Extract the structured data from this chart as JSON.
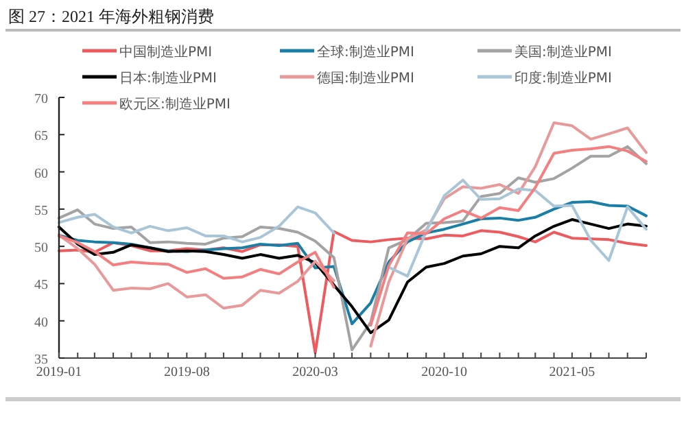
{
  "chart_data": {
    "type": "line",
    "title": "图 27：2021 年海外粗钢消费",
    "legend": "top",
    "x": [
      "2019-01",
      "2019-02",
      "2019-03",
      "2019-04",
      "2019-05",
      "2019-06",
      "2019-07",
      "2019-08",
      "2019-09",
      "2019-10",
      "2019-11",
      "2019-12",
      "2020-01",
      "2020-02",
      "2020-03",
      "2020-04",
      "2020-05",
      "2020-06",
      "2020-07",
      "2020-08",
      "2020-09",
      "2020-10",
      "2020-11",
      "2020-12",
      "2021-01",
      "2021-02",
      "2021-03",
      "2021-04",
      "2021-05",
      "2021-06",
      "2021-07",
      "2021-08",
      "2021-09"
    ],
    "xlim": [
      "2019-01",
      "2021-09"
    ],
    "xticks": [
      "2019-01",
      {
        "value": "2019-02",
        "label": null
      },
      {
        "value": "2019-03",
        "label": null
      },
      {
        "value": "2019-04",
        "label": null
      },
      {
        "value": "2019-05",
        "label": null
      },
      {
        "value": "2019-06",
        "label": null
      },
      {
        "value": "2019-07",
        "label": null
      },
      "2019-08",
      {
        "value": "2019-09",
        "label": null
      },
      {
        "value": "2019-10",
        "label": null
      },
      {
        "value": "2019-11",
        "label": null
      },
      {
        "value": "2019-12",
        "label": null
      },
      {
        "value": "2020-01",
        "label": null
      },
      {
        "value": "2020-02",
        "label": null
      },
      "2020-03",
      {
        "value": "2020-04",
        "label": null
      },
      {
        "value": "2020-05",
        "label": null
      },
      {
        "value": "2020-06",
        "label": null
      },
      {
        "value": "2020-07",
        "label": null
      },
      {
        "value": "2020-08",
        "label": null
      },
      {
        "value": "2020-09",
        "label": null
      },
      "2020-10",
      {
        "value": "2020-11",
        "label": null
      },
      {
        "value": "2020-12",
        "label": null
      },
      {
        "value": "2021-01",
        "label": null
      },
      {
        "value": "2021-02",
        "label": null
      },
      {
        "value": "2021-03",
        "label": null
      },
      {
        "value": "2021-04",
        "label": null
      },
      "2021-05",
      {
        "value": "2021-06",
        "label": null
      },
      {
        "value": "2021-07",
        "label": null
      },
      {
        "value": "2021-08",
        "label": null
      },
      {
        "value": "2021-09",
        "label": null
      }
    ],
    "ylim": [
      35,
      70
    ],
    "yticks": [
      35,
      40,
      45,
      50,
      55,
      60,
      65,
      70
    ],
    "series": [
      {
        "name": "中国制造业PMI",
        "color": "#ec5b5e",
        "values": [
          49.4,
          49.5,
          49.2,
          50.5,
          50.1,
          49.4,
          49.4,
          49.7,
          49.5,
          49.8,
          49.3,
          50.2,
          50.2,
          50.0,
          35.7,
          52.0,
          50.8,
          50.6,
          50.9,
          51.1,
          51.0,
          51.5,
          51.4,
          52.1,
          51.9,
          51.3,
          50.6,
          51.9,
          51.1,
          51.0,
          50.9,
          50.4,
          50.1
        ]
      },
      {
        "name": "全球:制造业PMI",
        "color": "#1a7fa6",
        "values": [
          51.5,
          50.8,
          50.6,
          50.5,
          50.3,
          49.8,
          49.4,
          49.3,
          49.5,
          49.7,
          49.8,
          50.3,
          50.1,
          50.4,
          47.1,
          47.3,
          39.6,
          42.4,
          47.9,
          50.6,
          51.8,
          52.3,
          53.0,
          53.7,
          53.8,
          53.5,
          53.9,
          55.0,
          55.9,
          56.0,
          55.5,
          55.4,
          54.1
        ]
      },
      {
        "name": "美国:制造业PMI",
        "color": "#a3a3a3",
        "values": [
          53.8,
          54.9,
          53.0,
          52.4,
          52.6,
          50.5,
          50.6,
          50.4,
          50.3,
          51.1,
          51.3,
          52.6,
          52.4,
          51.9,
          50.7,
          48.5,
          36.1,
          39.8,
          49.8,
          50.9,
          53.1,
          53.2,
          53.4,
          56.7,
          57.1,
          59.2,
          58.6,
          59.1,
          60.5,
          62.1,
          62.1,
          63.4,
          61.1
        ]
      },
      {
        "name": "日本:制造业PMI",
        "color": "#000000",
        "values": [
          52.6,
          50.3,
          48.9,
          49.2,
          50.2,
          49.8,
          49.3,
          49.4,
          49.3,
          48.9,
          48.4,
          48.9,
          48.4,
          48.8,
          47.8,
          44.8,
          41.9,
          38.4,
          40.1,
          45.2,
          47.2,
          47.7,
          48.7,
          49.0,
          50.0,
          49.8,
          51.4,
          52.7,
          53.6,
          53.0,
          52.4,
          53.0,
          52.7
        ]
      },
      {
        "name": "德国:制造业PMI",
        "color": "#e89a9a",
        "values": [
          51.5,
          49.7,
          47.6,
          44.1,
          44.4,
          44.3,
          45.0,
          43.2,
          43.5,
          41.7,
          42.1,
          44.1,
          43.7,
          45.3,
          48.0,
          45.4,
          null,
          36.6,
          45.2,
          51.0,
          52.2,
          56.4,
          58.0,
          57.8,
          58.3,
          57.1,
          60.7,
          66.6,
          66.2,
          64.4,
          65.1,
          65.9,
          62.6
        ]
      },
      {
        "name": "印度:制造业PMI",
        "color": "#a9c6d8",
        "values": [
          53.2,
          53.9,
          54.3,
          52.6,
          51.8,
          52.7,
          52.1,
          52.5,
          51.4,
          51.4,
          50.6,
          51.2,
          52.7,
          55.3,
          54.5,
          51.8,
          null,
          null,
          47.2,
          46.0,
          52.0,
          56.8,
          58.9,
          56.3,
          56.4,
          57.7,
          57.5,
          55.4,
          55.5,
          50.8,
          48.1,
          55.3,
          52.3
        ]
      },
      {
        "name": "欧元区:制造业PMI",
        "color": "#f47f80",
        "values": [
          51.4,
          50.5,
          49.3,
          47.5,
          47.9,
          47.7,
          47.6,
          46.5,
          47.0,
          45.7,
          45.9,
          46.9,
          46.3,
          47.9,
          49.2,
          44.5,
          null,
          39.4,
          47.4,
          51.8,
          51.7,
          53.7,
          54.8,
          53.8,
          55.2,
          54.8,
          57.9,
          62.5,
          62.9,
          63.1,
          63.4,
          62.8,
          61.4
        ]
      }
    ]
  }
}
